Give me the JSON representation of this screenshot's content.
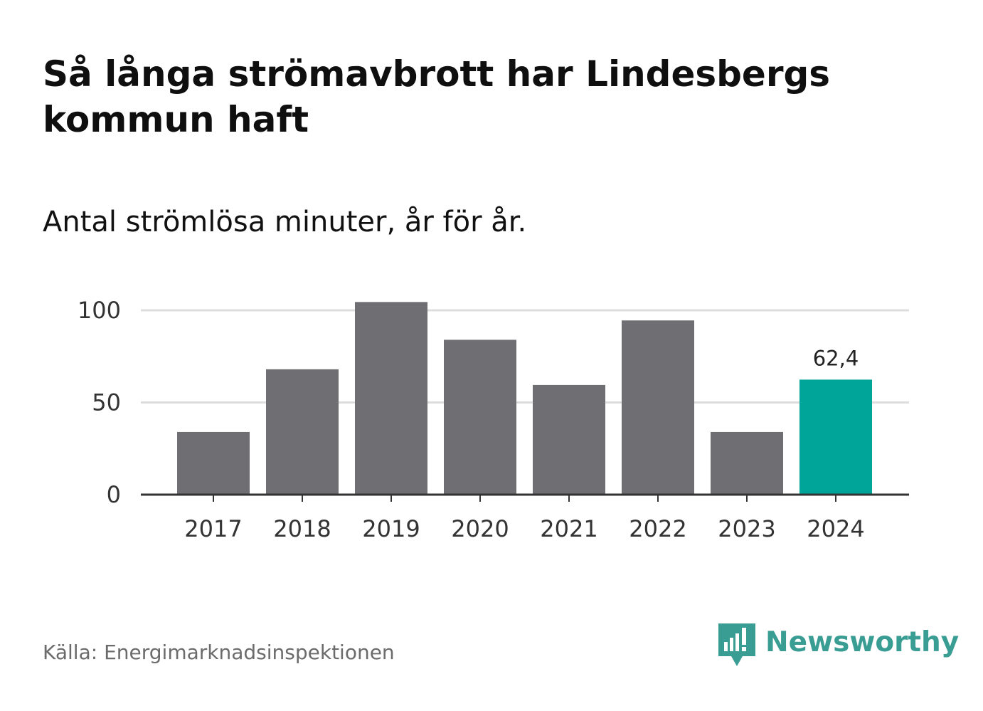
{
  "header": {
    "title": "Så långa strömavbrott har Lindesbergs kommun haft",
    "subtitle": "Antal strömlösa minuter, år för år."
  },
  "footer": {
    "source": "Källa: Energimarknadsinspektionen",
    "brand": "Newsworthy",
    "brand_icon": "newsworthy-logo-icon",
    "brand_color": "#3a9d94"
  },
  "colors": {
    "bar": "#6e6e73",
    "highlight": "#00a59a",
    "grid": "#dddddd",
    "axis": "#333333"
  },
  "chart_data": {
    "type": "bar",
    "title": "Så långa strömavbrott har Lindesbergs kommun haft",
    "subtitle": "Antal strömlösa minuter, år för år.",
    "categories": [
      "2017",
      "2018",
      "2019",
      "2020",
      "2021",
      "2022",
      "2023",
      "2024"
    ],
    "values": [
      34,
      68,
      104.5,
      84,
      59.5,
      94.5,
      34,
      62.4
    ],
    "highlight_index": 7,
    "data_labels": {
      "7": "62,4"
    },
    "ylim": [
      0,
      100
    ],
    "yticks": [
      0,
      50,
      100
    ],
    "ytick_labels": [
      "0",
      "50",
      "100"
    ],
    "xlabel": "",
    "ylabel": "",
    "grid": true
  }
}
